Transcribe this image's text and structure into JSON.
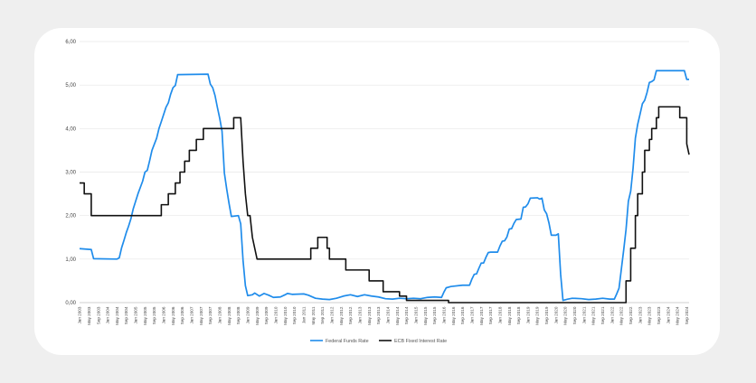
{
  "chart_data": {
    "type": "line",
    "title": "",
    "xlabel": "",
    "ylabel": "",
    "ylim": [
      0,
      6
    ],
    "y_ticks": [
      "0,00",
      "1,00",
      "2,00",
      "3,00",
      "4,00",
      "5,00",
      "6,00"
    ],
    "x_range": [
      "2003-01",
      "2024-10"
    ],
    "x_tick_labels": [
      "Jan 2003",
      "May 2003",
      "Sep 2003",
      "Jan 2004",
      "May 2004",
      "Sep 2004",
      "Jan 2005",
      "May 2005",
      "Sep 2005",
      "Jan 2006",
      "May 2006",
      "Sep 2006",
      "Jan 2007",
      "May 2007",
      "Sep 2007",
      "Jan 2008",
      "May 2008",
      "Sep 2008",
      "Jan 2009",
      "May 2009",
      "Sep 2009",
      "Jan 2010",
      "May 2010",
      "Sep 2010",
      "Jan 2011",
      "May 2011",
      "Sep 2011",
      "Jan 2012",
      "May 2012",
      "Sep 2012",
      "Jan 2013",
      "May 2013",
      "Sep 2013",
      "Jan 2014",
      "May 2014",
      "Sep 2014",
      "Jan 2015",
      "May 2015",
      "Sep 2015",
      "Jan 2016",
      "May 2016",
      "Sep 2016",
      "Jan 2017",
      "May 2017",
      "Sep 2017",
      "Jan 2018",
      "May 2018",
      "Sep 2018",
      "Jan 2019",
      "May 2019",
      "Sep 2019",
      "Jan 2020",
      "May 2020",
      "Sep 2020",
      "Jan 2021",
      "May 2021",
      "Sep 2021",
      "Jan 2022",
      "May 2022",
      "Sep 2022",
      "Jan 2023",
      "May 2023",
      "Sep 2023",
      "Jan 2024",
      "May 2024",
      "Sep 2024"
    ],
    "grid": true,
    "legend_position": "bottom-center",
    "series": [
      {
        "name": "Federal Funds Rate",
        "color": "#1f8ceb",
        "points": [
          [
            "2003-01",
            1.24
          ],
          [
            "2003-06",
            1.22
          ],
          [
            "2003-07",
            1.01
          ],
          [
            "2004-05",
            1.0
          ],
          [
            "2004-06",
            1.03
          ],
          [
            "2004-07",
            1.26
          ],
          [
            "2004-08",
            1.43
          ],
          [
            "2004-09",
            1.61
          ],
          [
            "2004-10",
            1.76
          ],
          [
            "2004-11",
            1.93
          ],
          [
            "2004-12",
            2.16
          ],
          [
            "2005-02",
            2.5
          ],
          [
            "2005-04",
            2.79
          ],
          [
            "2005-05",
            3.0
          ],
          [
            "2005-06",
            3.04
          ],
          [
            "2005-07",
            3.26
          ],
          [
            "2005-08",
            3.5
          ],
          [
            "2005-10",
            3.78
          ],
          [
            "2005-11",
            4.0
          ],
          [
            "2005-12",
            4.16
          ],
          [
            "2006-02",
            4.49
          ],
          [
            "2006-03",
            4.59
          ],
          [
            "2006-04",
            4.79
          ],
          [
            "2006-05",
            4.94
          ],
          [
            "2006-06",
            4.99
          ],
          [
            "2006-07",
            5.24
          ],
          [
            "2007-08",
            5.25
          ],
          [
            "2007-09",
            5.02
          ],
          [
            "2007-10",
            4.94
          ],
          [
            "2007-11",
            4.76
          ],
          [
            "2007-12",
            4.49
          ],
          [
            "2008-01",
            4.24
          ],
          [
            "2008-02",
            3.94
          ],
          [
            "2008-03",
            2.98
          ],
          [
            "2008-04",
            2.61
          ],
          [
            "2008-05",
            2.28
          ],
          [
            "2008-06",
            1.98
          ],
          [
            "2008-09",
            2.0
          ],
          [
            "2008-10",
            1.81
          ],
          [
            "2008-11",
            0.97
          ],
          [
            "2008-12",
            0.39
          ],
          [
            "2009-01",
            0.16
          ],
          [
            "2009-03",
            0.18
          ],
          [
            "2009-04",
            0.22
          ],
          [
            "2009-06",
            0.15
          ],
          [
            "2009-08",
            0.21
          ],
          [
            "2009-10",
            0.17
          ],
          [
            "2009-12",
            0.12
          ],
          [
            "2010-03",
            0.13
          ],
          [
            "2010-05",
            0.18
          ],
          [
            "2010-06",
            0.21
          ],
          [
            "2010-08",
            0.19
          ],
          [
            "2011-01",
            0.2
          ],
          [
            "2011-03",
            0.17
          ],
          [
            "2011-06",
            0.1
          ],
          [
            "2011-09",
            0.08
          ],
          [
            "2011-12",
            0.07
          ],
          [
            "2012-03",
            0.1
          ],
          [
            "2012-06",
            0.15
          ],
          [
            "2012-09",
            0.18
          ],
          [
            "2012-12",
            0.14
          ],
          [
            "2013-03",
            0.18
          ],
          [
            "2013-06",
            0.15
          ],
          [
            "2013-09",
            0.13
          ],
          [
            "2013-12",
            0.09
          ],
          [
            "2014-03",
            0.08
          ],
          [
            "2014-06",
            0.1
          ],
          [
            "2014-09",
            0.09
          ],
          [
            "2014-12",
            0.1
          ],
          [
            "2015-03",
            0.09
          ],
          [
            "2015-06",
            0.12
          ],
          [
            "2015-09",
            0.13
          ],
          [
            "2015-12",
            0.12
          ],
          [
            "2016-01",
            0.24
          ],
          [
            "2016-02",
            0.34
          ],
          [
            "2016-04",
            0.37
          ],
          [
            "2016-09",
            0.4
          ],
          [
            "2016-12",
            0.4
          ],
          [
            "2017-01",
            0.54
          ],
          [
            "2017-02",
            0.65
          ],
          [
            "2017-03",
            0.66
          ],
          [
            "2017-04",
            0.79
          ],
          [
            "2017-05",
            0.91
          ],
          [
            "2017-06",
            0.91
          ],
          [
            "2017-07",
            1.04
          ],
          [
            "2017-08",
            1.15
          ],
          [
            "2017-09",
            1.16
          ],
          [
            "2017-12",
            1.16
          ],
          [
            "2018-01",
            1.3
          ],
          [
            "2018-02",
            1.41
          ],
          [
            "2018-03",
            1.42
          ],
          [
            "2018-04",
            1.51
          ],
          [
            "2018-05",
            1.69
          ],
          [
            "2018-06",
            1.7
          ],
          [
            "2018-07",
            1.82
          ],
          [
            "2018-08",
            1.91
          ],
          [
            "2018-10",
            1.92
          ],
          [
            "2018-11",
            2.19
          ],
          [
            "2018-12",
            2.2
          ],
          [
            "2019-01",
            2.27
          ],
          [
            "2019-02",
            2.4
          ],
          [
            "2019-05",
            2.41
          ],
          [
            "2019-06",
            2.38
          ],
          [
            "2019-07",
            2.4
          ],
          [
            "2019-08",
            2.13
          ],
          [
            "2019-09",
            2.04
          ],
          [
            "2019-10",
            1.83
          ],
          [
            "2019-11",
            1.55
          ],
          [
            "2020-01",
            1.55
          ],
          [
            "2020-02",
            1.58
          ],
          [
            "2020-03",
            0.65
          ],
          [
            "2020-04",
            0.05
          ],
          [
            "2020-06",
            0.08
          ],
          [
            "2020-08",
            0.1
          ],
          [
            "2020-12",
            0.09
          ],
          [
            "2021-03",
            0.07
          ],
          [
            "2021-06",
            0.08
          ],
          [
            "2021-09",
            0.1
          ],
          [
            "2021-12",
            0.08
          ],
          [
            "2022-02",
            0.08
          ],
          [
            "2022-03",
            0.2
          ],
          [
            "2022-04",
            0.33
          ],
          [
            "2022-05",
            0.77
          ],
          [
            "2022-06",
            1.21
          ],
          [
            "2022-07",
            1.68
          ],
          [
            "2022-08",
            2.33
          ],
          [
            "2022-09",
            2.56
          ],
          [
            "2022-10",
            3.08
          ],
          [
            "2022-11",
            3.78
          ],
          [
            "2022-12",
            4.1
          ],
          [
            "2023-01",
            4.33
          ],
          [
            "2023-02",
            4.57
          ],
          [
            "2023-03",
            4.65
          ],
          [
            "2023-04",
            4.83
          ],
          [
            "2023-05",
            5.06
          ],
          [
            "2023-06",
            5.08
          ],
          [
            "2023-07",
            5.12
          ],
          [
            "2023-08",
            5.33
          ],
          [
            "2024-08",
            5.33
          ],
          [
            "2024-09",
            5.13
          ],
          [
            "2024-10",
            5.13
          ]
        ]
      },
      {
        "name": "ECB Fixed Interest Rate",
        "color": "#111111",
        "points": [
          [
            "2003-01",
            2.75
          ],
          [
            "2003-03",
            2.75
          ],
          [
            "2003-03",
            2.5
          ],
          [
            "2003-06",
            2.5
          ],
          [
            "2003-06",
            2.0
          ],
          [
            "2005-12",
            2.0
          ],
          [
            "2005-12",
            2.25
          ],
          [
            "2006-03",
            2.25
          ],
          [
            "2006-03",
            2.5
          ],
          [
            "2006-06",
            2.5
          ],
          [
            "2006-06",
            2.75
          ],
          [
            "2006-08",
            2.75
          ],
          [
            "2006-08",
            3.0
          ],
          [
            "2006-10",
            3.0
          ],
          [
            "2006-10",
            3.25
          ],
          [
            "2006-12",
            3.25
          ],
          [
            "2006-12",
            3.5
          ],
          [
            "2007-03",
            3.5
          ],
          [
            "2007-03",
            3.75
          ],
          [
            "2007-06",
            3.75
          ],
          [
            "2007-06",
            4.0
          ],
          [
            "2008-07",
            4.0
          ],
          [
            "2008-07",
            4.25
          ],
          [
            "2008-10",
            4.25
          ],
          [
            "2008-11",
            3.25
          ],
          [
            "2008-12",
            2.5
          ],
          [
            "2009-01",
            2.0
          ],
          [
            "2009-02",
            2.0
          ],
          [
            "2009-03",
            1.5
          ],
          [
            "2009-04",
            1.25
          ],
          [
            "2009-05",
            1.0
          ],
          [
            "2011-04",
            1.0
          ],
          [
            "2011-04",
            1.25
          ],
          [
            "2011-07",
            1.25
          ],
          [
            "2011-07",
            1.5
          ],
          [
            "2011-11",
            1.5
          ],
          [
            "2011-11",
            1.25
          ],
          [
            "2011-12",
            1.25
          ],
          [
            "2011-12",
            1.0
          ],
          [
            "2012-07",
            1.0
          ],
          [
            "2012-07",
            0.75
          ],
          [
            "2013-05",
            0.75
          ],
          [
            "2013-05",
            0.5
          ],
          [
            "2013-11",
            0.5
          ],
          [
            "2013-11",
            0.25
          ],
          [
            "2014-06",
            0.25
          ],
          [
            "2014-06",
            0.15
          ],
          [
            "2014-09",
            0.15
          ],
          [
            "2014-09",
            0.05
          ],
          [
            "2016-03",
            0.05
          ],
          [
            "2016-03",
            0.0
          ],
          [
            "2022-07",
            0.0
          ],
          [
            "2022-07",
            0.5
          ],
          [
            "2022-09",
            0.5
          ],
          [
            "2022-09",
            1.25
          ],
          [
            "2022-11",
            1.25
          ],
          [
            "2022-11",
            2.0
          ],
          [
            "2022-12",
            2.0
          ],
          [
            "2022-12",
            2.5
          ],
          [
            "2023-02",
            2.5
          ],
          [
            "2023-02",
            3.0
          ],
          [
            "2023-03",
            3.0
          ],
          [
            "2023-03",
            3.5
          ],
          [
            "2023-05",
            3.5
          ],
          [
            "2023-05",
            3.75
          ],
          [
            "2023-06",
            3.75
          ],
          [
            "2023-06",
            4.0
          ],
          [
            "2023-08",
            4.0
          ],
          [
            "2023-08",
            4.25
          ],
          [
            "2023-09",
            4.25
          ],
          [
            "2023-09",
            4.5
          ],
          [
            "2024-06",
            4.5
          ],
          [
            "2024-06",
            4.25
          ],
          [
            "2024-09",
            4.25
          ],
          [
            "2024-09",
            3.65
          ],
          [
            "2024-10",
            3.4
          ]
        ]
      }
    ]
  }
}
